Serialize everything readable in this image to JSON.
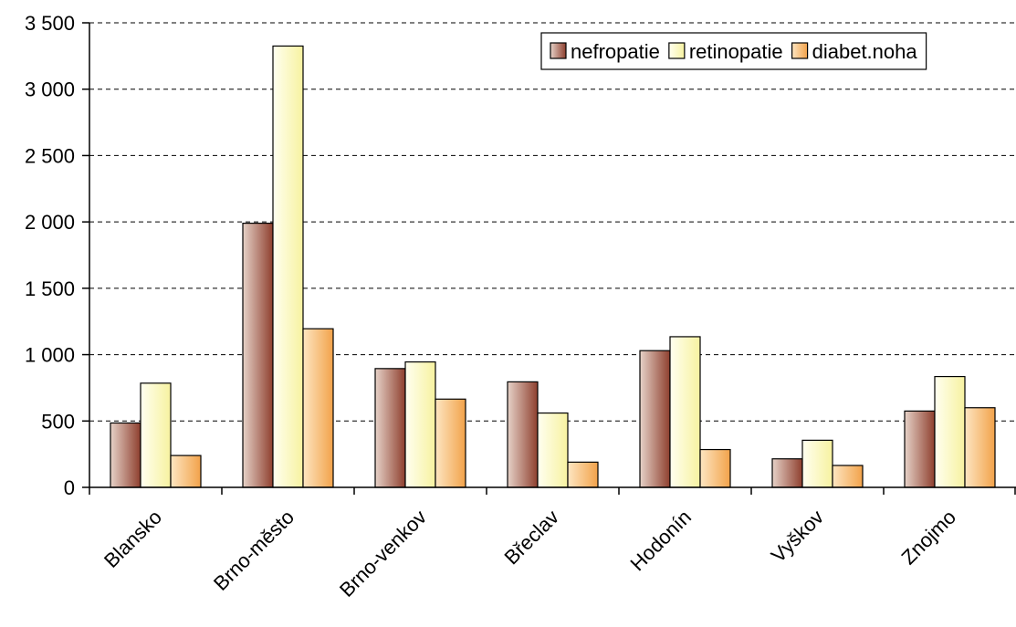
{
  "chart_data": {
    "type": "bar",
    "categories": [
      "Blansko",
      "Brno-město",
      "Brno-venkov",
      "Břeclav",
      "Hodonín",
      "Vyškov",
      "Znojmo"
    ],
    "series": [
      {
        "name": "nefropatie",
        "values": [
          485,
          1990,
          895,
          795,
          1030,
          215,
          575
        ],
        "color": "#8e3f2e",
        "color_light": "#e6d2c8"
      },
      {
        "name": "retinopatie",
        "values": [
          785,
          3325,
          945,
          560,
          1135,
          355,
          835
        ],
        "color": "#f7f2a0",
        "color_light": "#fffff0"
      },
      {
        "name": "diabet.noha",
        "values": [
          240,
          1195,
          665,
          190,
          285,
          165,
          600
        ],
        "color": "#f2a24a",
        "color_light": "#fde6c2"
      }
    ],
    "ylim": [
      0,
      3500
    ],
    "yticks": [
      0,
      500,
      1000,
      1500,
      2000,
      2500,
      3000,
      3500
    ],
    "ytick_labels": [
      "0",
      "500",
      "1 000",
      "1 500",
      "2 000",
      "2 500",
      "3 000",
      "3 500"
    ],
    "grid": true,
    "legend_position": "top-right",
    "title": "",
    "xlabel": "",
    "ylabel": ""
  }
}
